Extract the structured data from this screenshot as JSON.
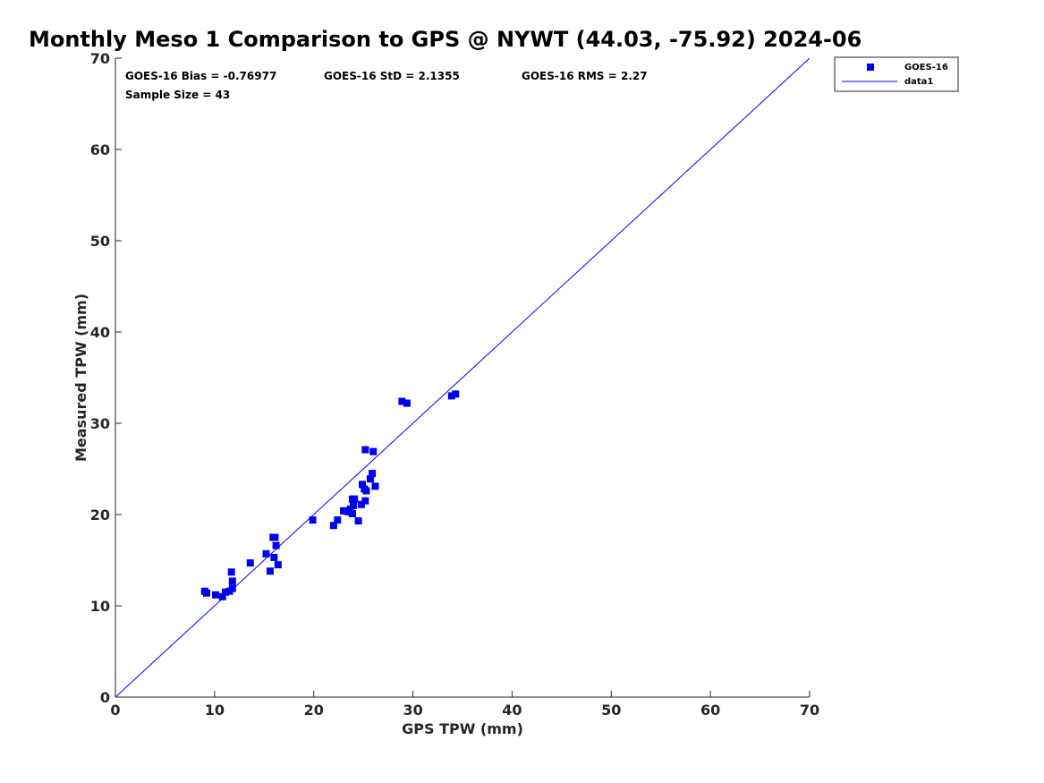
{
  "chart_data": {
    "type": "scatter",
    "title": "Monthly Meso 1 Comparison to GPS @ NYWT (44.03, -75.92) 2024-06",
    "xlabel": "GPS TPW (mm)",
    "ylabel": "Measured TPW (mm)",
    "xlim": [
      0,
      70
    ],
    "ylim": [
      0,
      70
    ],
    "xticks": [
      "0",
      "10",
      "20",
      "30",
      "40",
      "50",
      "60",
      "70"
    ],
    "yticks": [
      "0",
      "10",
      "20",
      "30",
      "40",
      "50",
      "60",
      "70"
    ],
    "grid": false,
    "legend_position": "top-right outside",
    "stats": {
      "bias": "GOES-16 Bias = -0.76977",
      "std": "GOES-16 StD = 2.1355",
      "rms": "GOES-16 RMS = 2.27",
      "sample": "Sample Size = 43"
    },
    "series": [
      {
        "name": "GOES-16",
        "marker": "square",
        "color": "#0000ee",
        "points": [
          [
            9.0,
            11.6
          ],
          [
            9.2,
            11.4
          ],
          [
            10.1,
            11.2
          ],
          [
            10.8,
            11.0
          ],
          [
            11.1,
            11.5
          ],
          [
            11.5,
            11.6
          ],
          [
            11.8,
            11.9
          ],
          [
            11.8,
            12.7
          ],
          [
            11.7,
            13.7
          ],
          [
            13.6,
            14.7
          ],
          [
            15.2,
            15.7
          ],
          [
            15.6,
            13.8
          ],
          [
            16.0,
            15.3
          ],
          [
            16.4,
            14.5
          ],
          [
            16.2,
            16.6
          ],
          [
            15.9,
            17.5
          ],
          [
            16.1,
            17.5
          ],
          [
            19.9,
            19.4
          ],
          [
            22.0,
            18.8
          ],
          [
            22.4,
            19.4
          ],
          [
            23.0,
            20.4
          ],
          [
            23.3,
            20.4
          ],
          [
            23.7,
            20.6
          ],
          [
            23.9,
            20.1
          ],
          [
            24.0,
            21.0
          ],
          [
            23.9,
            21.7
          ],
          [
            24.1,
            21.7
          ],
          [
            24.5,
            19.3
          ],
          [
            24.8,
            21.1
          ],
          [
            25.2,
            21.5
          ],
          [
            24.9,
            23.3
          ],
          [
            25.1,
            22.8
          ],
          [
            25.3,
            22.6
          ],
          [
            25.7,
            23.9
          ],
          [
            25.9,
            24.5
          ],
          [
            26.2,
            23.1
          ],
          [
            25.2,
            27.1
          ],
          [
            26.0,
            26.9
          ],
          [
            28.9,
            32.4
          ],
          [
            29.4,
            32.2
          ],
          [
            33.9,
            33.0
          ],
          [
            34.3,
            33.2
          ],
          [
            23.5,
            20.3
          ]
        ]
      },
      {
        "name": "data1",
        "type": "line",
        "color": "#0000ee",
        "points": [
          [
            0,
            0
          ],
          [
            70,
            70
          ]
        ]
      }
    ]
  }
}
